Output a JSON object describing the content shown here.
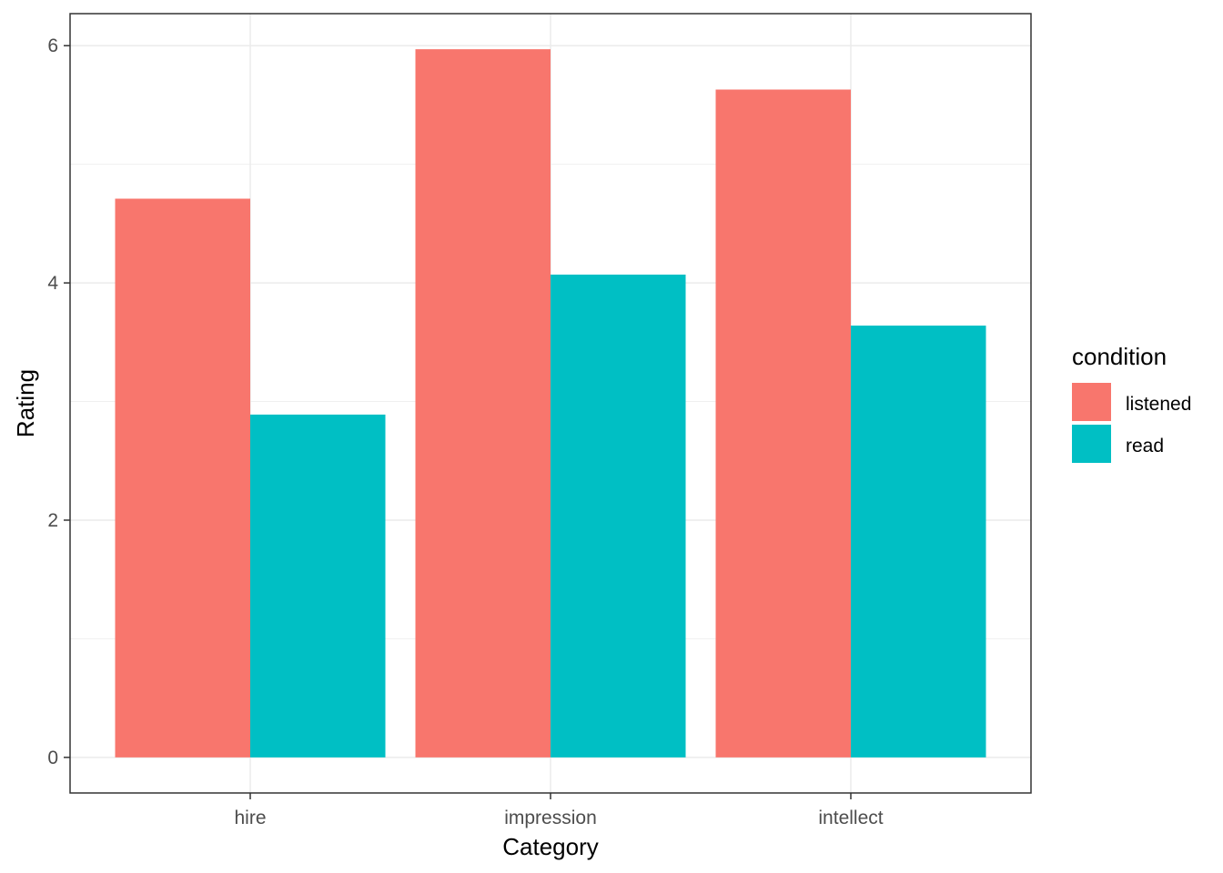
{
  "chart_data": {
    "type": "bar",
    "title": "",
    "xlabel": "Category",
    "ylabel": "Rating",
    "categories": [
      "hire",
      "impression",
      "intellect"
    ],
    "series": [
      {
        "name": "listened",
        "color": "#F8766D",
        "values": [
          4.71,
          5.97,
          5.63
        ]
      },
      {
        "name": "read",
        "color": "#00BFC4",
        "values": [
          2.89,
          4.07,
          3.64
        ]
      }
    ],
    "ylim": [
      -0.3,
      6.27
    ],
    "yticks": [
      0,
      2,
      4,
      6
    ],
    "yticks_labels": [
      "0",
      "2",
      "4",
      "6"
    ],
    "grid": true,
    "legend": {
      "title": "condition",
      "position": "right"
    }
  }
}
